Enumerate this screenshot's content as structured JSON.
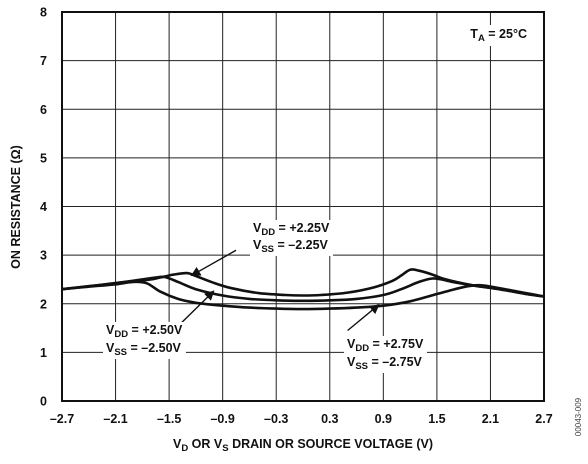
{
  "chart_data": {
    "type": "line",
    "xlabel": {
      "base1": "V",
      "sub1": "D",
      "mid": " OR V",
      "sub2": "S",
      "rest": " DRAIN OR SOURCE VOLTAGE (V)"
    },
    "ylabel": "ON RESISTANCE (Ω)",
    "xlim": [
      -2.7,
      2.7
    ],
    "ylim": [
      0,
      8
    ],
    "x_ticks": [
      -2.7,
      -2.1,
      -1.5,
      -0.9,
      -0.3,
      0.3,
      0.9,
      1.5,
      2.1,
      2.7
    ],
    "x_tick_labels": [
      "–2.7",
      "–2.1",
      "–1.5",
      "–0.9",
      "–0.3",
      "0.3",
      "0.9",
      "1.5",
      "2.1",
      "2.7"
    ],
    "y_ticks": [
      0,
      1,
      2,
      3,
      4,
      5,
      6,
      7,
      8
    ],
    "y_tick_labels": [
      "0",
      "1",
      "2",
      "3",
      "4",
      "5",
      "6",
      "7",
      "8"
    ],
    "grid": true,
    "condition": {
      "base": "T",
      "sub": "A",
      "rest": " = 25°C"
    },
    "series": [
      {
        "x": [
          -2.7,
          -2.4,
          -2.1,
          -1.9,
          -1.7,
          -1.55,
          -1.45,
          -1.3,
          -1.2,
          -1.0,
          -0.8,
          -0.5,
          -0.2,
          0.0,
          0.2,
          0.5,
          0.8,
          1.0,
          1.1,
          1.2,
          1.3,
          1.45,
          1.6,
          1.9,
          2.2,
          2.5,
          2.7
        ],
        "y": [
          2.3,
          2.36,
          2.42,
          2.46,
          2.5,
          2.56,
          2.6,
          2.63,
          2.57,
          2.43,
          2.32,
          2.22,
          2.18,
          2.17,
          2.18,
          2.23,
          2.34,
          2.47,
          2.58,
          2.7,
          2.68,
          2.6,
          2.5,
          2.38,
          2.3,
          2.2,
          2.15
        ]
      },
      {
        "x": [
          -2.7,
          -2.3,
          -2.0,
          -1.8,
          -1.65,
          -1.55,
          -1.4,
          -1.2,
          -0.9,
          -0.6,
          -0.3,
          0.0,
          0.3,
          0.6,
          0.9,
          1.1,
          1.3,
          1.45,
          1.55,
          1.7,
          1.9,
          2.2,
          2.5,
          2.7
        ],
        "y": [
          2.3,
          2.38,
          2.45,
          2.5,
          2.54,
          2.55,
          2.45,
          2.3,
          2.17,
          2.1,
          2.07,
          2.06,
          2.07,
          2.1,
          2.18,
          2.3,
          2.45,
          2.52,
          2.5,
          2.44,
          2.38,
          2.3,
          2.2,
          2.15
        ]
      },
      {
        "x": [
          -2.7,
          -2.4,
          -2.1,
          -1.9,
          -1.75,
          -1.6,
          -1.4,
          -1.2,
          -0.9,
          -0.6,
          -0.3,
          0.0,
          0.3,
          0.6,
          0.9,
          1.2,
          1.5,
          1.7,
          1.85,
          2.0,
          2.2,
          2.5,
          2.7
        ],
        "y": [
          2.3,
          2.35,
          2.4,
          2.45,
          2.42,
          2.25,
          2.1,
          2.02,
          1.96,
          1.92,
          1.9,
          1.89,
          1.9,
          1.92,
          1.96,
          2.05,
          2.2,
          2.3,
          2.36,
          2.38,
          2.32,
          2.22,
          2.15
        ]
      }
    ],
    "annotations": [
      {
        "id": "225",
        "line1": {
          "base": "V",
          "sub": "DD",
          "rest": " = +2.25V"
        },
        "line2": {
          "base": "V",
          "sub": "SS",
          "rest": " = –2.25V"
        },
        "arrow_from": [
          -0.75,
          3.1
        ],
        "arrow_to": [
          -1.25,
          2.58
        ]
      },
      {
        "id": "250",
        "line1": {
          "base": "V",
          "sub": "DD",
          "rest": " = +2.50V"
        },
        "line2": {
          "base": "V",
          "sub": "SS",
          "rest": " = –2.50V"
        },
        "arrow_from": [
          -1.45,
          1.45
        ],
        "arrow_to": [
          -1.0,
          2.26
        ]
      },
      {
        "id": "275",
        "line1": {
          "base": "V",
          "sub": "DD",
          "rest": " = +2.75V"
        },
        "line2": {
          "base": "V",
          "sub": "SS",
          "rest": " = –2.75V"
        },
        "arrow_from": [
          0.5,
          1.45
        ],
        "arrow_to": [
          0.85,
          1.98
        ]
      }
    ],
    "doc_code": "00043-009"
  }
}
